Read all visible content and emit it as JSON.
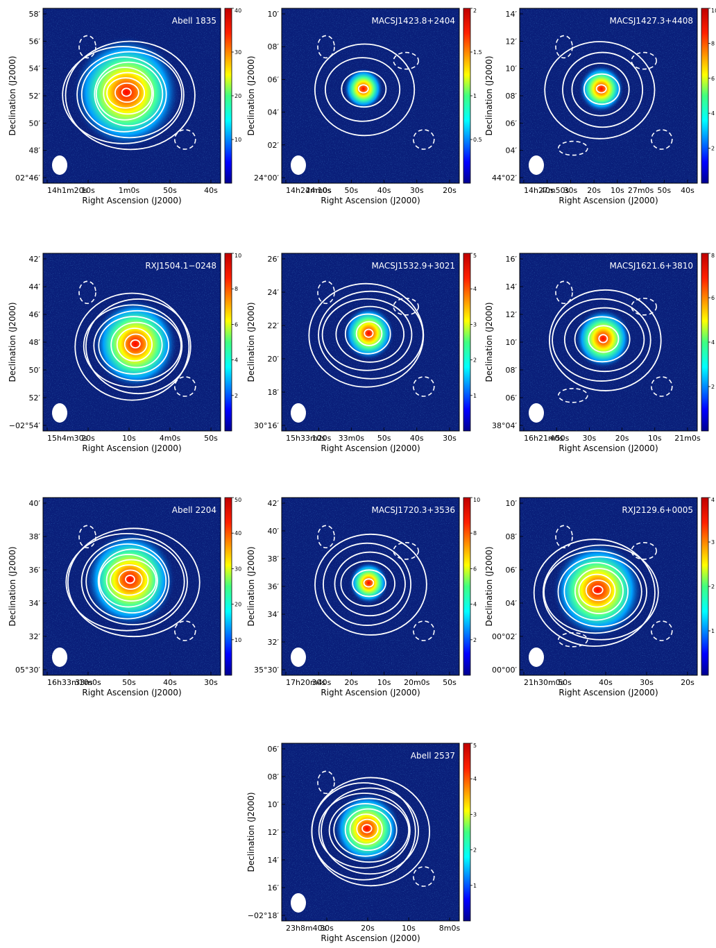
{
  "figure": {
    "xlabel": "Right Ascension (J2000)",
    "ylabel": "Declination (J2000)"
  },
  "panels": [
    {
      "title": "Abell 1835",
      "yticks": [
        "58′",
        "56′",
        "54′",
        "52′",
        "50′",
        "48′",
        "02°46′"
      ],
      "xticks": [
        "14h1m20s",
        "10s",
        "1m0s",
        "50s",
        "40s"
      ],
      "colorbar": {
        "max": 40,
        "ticks": [
          "10",
          "20",
          "30",
          "40"
        ]
      }
    },
    {
      "title": "MACSJ1423.8+2404",
      "yticks": [
        "10′",
        "08′",
        "06′",
        "04′",
        "02′",
        "24°00′"
      ],
      "xticks": [
        "14h24m10s",
        "24m0s",
        "50s",
        "40s",
        "30s",
        "20s"
      ],
      "colorbar": {
        "max": 2,
        "ticks": [
          "0.5",
          "1",
          "1.5",
          "2"
        ]
      }
    },
    {
      "title": "MACSJ1427.3+4408",
      "yticks": [
        "14′",
        "12′",
        "10′",
        "08′",
        "06′",
        "04′",
        "44°02′"
      ],
      "xticks": [
        "14h27m50s",
        "40s",
        "30s",
        "20s",
        "10s",
        "27m0s",
        "50s",
        "40s"
      ],
      "colorbar": {
        "max": 10,
        "ticks": [
          "2",
          "4",
          "6",
          "8",
          "10"
        ]
      }
    },
    {
      "title": "RXJ1504.1−0248",
      "yticks": [
        "42′",
        "44′",
        "46′",
        "48′",
        "50′",
        "52′",
        "−02°54′"
      ],
      "xticks": [
        "15h4m30s",
        "20s",
        "10s",
        "4m0s",
        "50s"
      ],
      "colorbar": {
        "max": 10,
        "ticks": [
          "2",
          "4",
          "6",
          "8",
          "10"
        ]
      }
    },
    {
      "title": "MACSJ1532.9+3021",
      "yticks": [
        "26′",
        "24′",
        "22′",
        "20′",
        "18′",
        "30°16′"
      ],
      "xticks": [
        "15h33m20s",
        "10s",
        "33m0s",
        "50s",
        "40s",
        "30s"
      ],
      "colorbar": {
        "max": 5,
        "ticks": [
          "1",
          "2",
          "3",
          "4",
          "5"
        ]
      }
    },
    {
      "title": "MACSJ1621.6+3810",
      "yticks": [
        "16′",
        "14′",
        "12′",
        "10′",
        "08′",
        "06′",
        "38°04′"
      ],
      "xticks": [
        "16h21m50s",
        "40s",
        "30s",
        "20s",
        "10s",
        "21m0s"
      ],
      "colorbar": {
        "max": 8,
        "ticks": [
          "2",
          "4",
          "6",
          "8"
        ]
      }
    },
    {
      "title": "Abell 2204",
      "yticks": [
        "40′",
        "38′",
        "36′",
        "34′",
        "32′",
        "05°30′"
      ],
      "xticks": [
        "16h33m10s",
        "33m0s",
        "50s",
        "40s",
        "30s"
      ],
      "colorbar": {
        "max": 50,
        "ticks": [
          "10",
          "20",
          "30",
          "40",
          "50"
        ]
      }
    },
    {
      "title": "MACSJ1720.3+3536",
      "yticks": [
        "42′",
        "40′",
        "38′",
        "36′",
        "34′",
        "32′",
        "35°30′"
      ],
      "xticks": [
        "17h20m40s",
        "30s",
        "20s",
        "10s",
        "20m0s",
        "50s"
      ],
      "colorbar": {
        "max": 10,
        "ticks": [
          "2",
          "4",
          "6",
          "8",
          "10"
        ]
      }
    },
    {
      "title": "RXJ2129.6+0005",
      "yticks": [
        "10′",
        "08′",
        "06′",
        "04′",
        "00°02′",
        "00°00′"
      ],
      "xticks": [
        "21h30m0s",
        "50s",
        "40s",
        "30s",
        "20s"
      ],
      "colorbar": {
        "max": 4,
        "ticks": [
          "1",
          "2",
          "3",
          "4"
        ]
      }
    },
    {
      "title": "Abell 2537",
      "yticks": [
        "06′",
        "08′",
        "10′",
        "12′",
        "14′",
        "16′",
        "−02°18′"
      ],
      "xticks": [
        "23h8m40s",
        "30s",
        "20s",
        "10s",
        "8m0s"
      ],
      "colorbar": {
        "max": 5,
        "ticks": [
          "1",
          "2",
          "3",
          "4",
          "5"
        ]
      }
    }
  ]
}
